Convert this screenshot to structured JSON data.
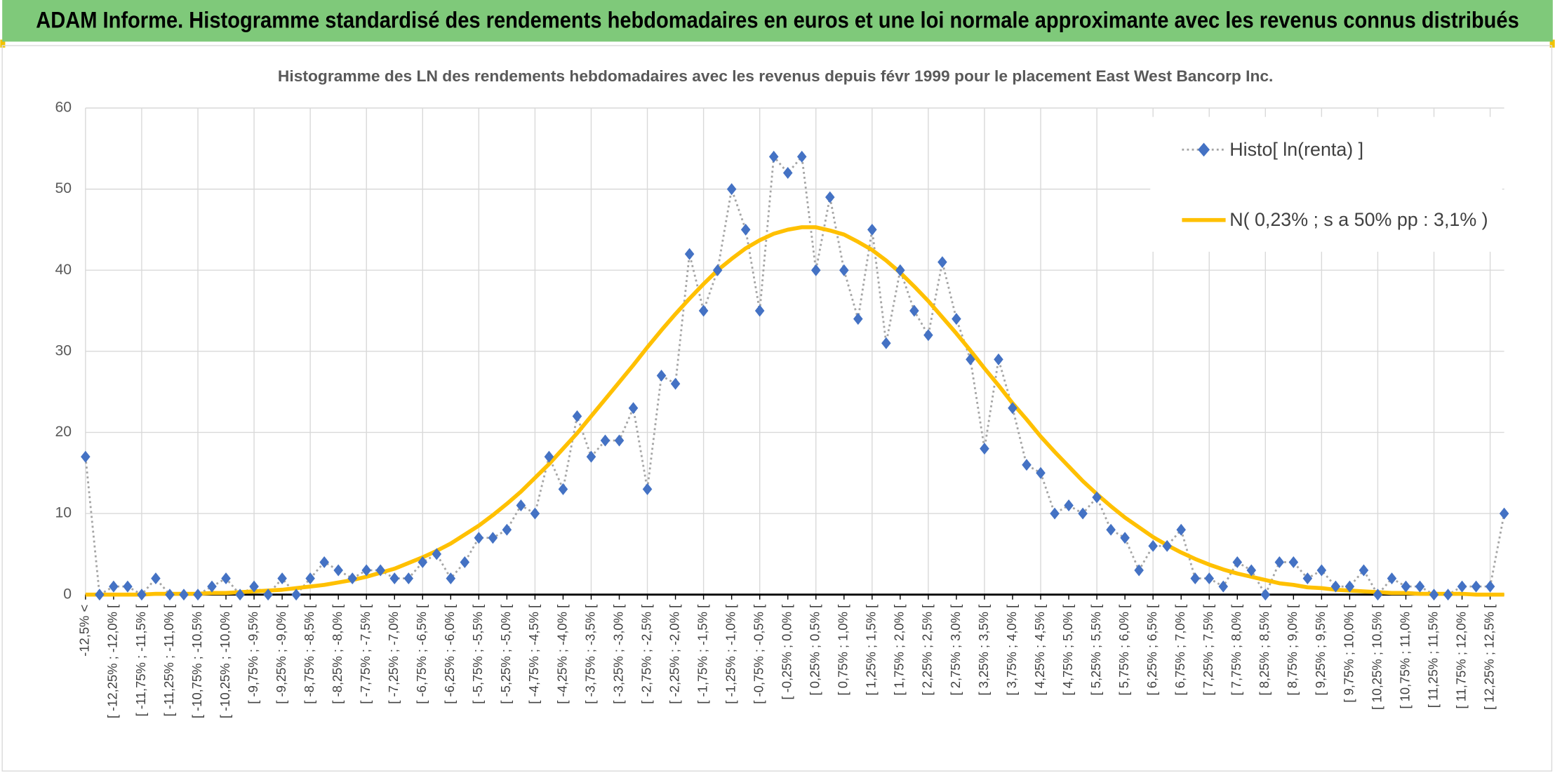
{
  "chart_data": {
    "type": "line",
    "title": "ADAM Informe. Histogramme standardisé des rendements hebdomadaires en euros et une loi normale approximante avec les revenus connus distribués",
    "subtitle": "Histogramme des LN des rendements hebdomadaires avec les revenus depuis févr 1999 pour le placement East West Bancorp Inc.",
    "categories": [
      "-12,5% <",
      null,
      "[ -12,25% ; -12,0% [",
      null,
      "[ -11,75% ; -11,5% [",
      null,
      "[ -11,25% ; -11,0% [",
      null,
      "[ -10,75% ; -10,5% [",
      null,
      "[ -10,25% ; -10,0% [",
      null,
      "[ -9,75% ; -9,5% [",
      null,
      "[ -9,25% ; -9,0% [",
      null,
      "[ -8,75% ; -8,5% [",
      null,
      "[ -8,25% ; -8,0% [",
      null,
      "[ -7,75% ; -7,5% [",
      null,
      "[ -7,25% ; -7,0% [",
      null,
      "[ -6,75% ; -6,5% [",
      null,
      "[ -6,25% ; -6,0% [",
      null,
      "[ -5,75% ; -5,5% [",
      null,
      "[ -5,25% ; -5,0% [",
      null,
      "[ -4,75% ; -4,5% [",
      null,
      "[ -4,25% ; -4,0% [",
      null,
      "[ -3,75% ; -3,5% [",
      null,
      "[ -3,25% ; -3,0% [",
      null,
      "[ -2,75% ; -2,5% [",
      null,
      "[ -2,25% ; -2,0% [",
      null,
      "[ -1,75% ; -1,5% [",
      null,
      "[ -1,25% ; -1,0% [",
      null,
      "[ -0,75% ; -0,5% [",
      null,
      "[ -0,25% ; 0,0% [",
      null,
      "[ 0,25% ; 0,5% [",
      null,
      "[ 0,75% ; 1,0% [",
      null,
      "[ 1,25% ; 1,5% [",
      null,
      "[ 1,75% ; 2,0% [",
      null,
      "[ 2,25% ; 2,5% [",
      null,
      "[ 2,75% ; 3,0% [",
      null,
      "[ 3,25% ; 3,5% [",
      null,
      "[ 3,75% ; 4,0% [",
      null,
      "[ 4,25% ; 4,5% [",
      null,
      "[ 4,75% ; 5,0% [",
      null,
      "[ 5,25% ; 5,5% [",
      null,
      "[ 5,75% ; 6,0% [",
      null,
      "[ 6,25% ; 6,5% [",
      null,
      "[ 6,75% ; 7,0% [",
      null,
      "[ 7,25% ; 7,5% [",
      null,
      "[ 7,75% ; 8,0% [",
      null,
      "[ 8,25% ; 8,5% [",
      null,
      "[ 8,75% ; 9,0% [",
      null,
      "[ 9,25% ; 9,5% [",
      null,
      "[ 9,75% ; 10,0% [",
      null,
      "[ 10,25% ; 10,5% [",
      null,
      "[ 10,75% ; 11,0% [",
      null,
      "[ 11,25% ; 11,5% [",
      null,
      "[ 11,75% ; 12,0% [",
      null,
      "[ 12,25% ; 12,5% [",
      null
    ],
    "series": [
      {
        "name": "Histo[ ln(renta) ]",
        "color": "#4472c4",
        "line_color": "#a5a5a5",
        "values": [
          17,
          0,
          1,
          1,
          0,
          2,
          0,
          0,
          0,
          1,
          2,
          0,
          1,
          0,
          2,
          0,
          2,
          4,
          3,
          2,
          3,
          3,
          2,
          2,
          4,
          5,
          2,
          4,
          7,
          7,
          8,
          11,
          10,
          17,
          13,
          22,
          17,
          19,
          19,
          23,
          13,
          27,
          26,
          42,
          35,
          40,
          50,
          45,
          35,
          54,
          52,
          54,
          40,
          49,
          40,
          34,
          45,
          31,
          40,
          35,
          32,
          41,
          34,
          29,
          18,
          29,
          23,
          16,
          15,
          10,
          11,
          10,
          12,
          8,
          7,
          3,
          6,
          6,
          8,
          2,
          2,
          1,
          4,
          3,
          0,
          4,
          4,
          2,
          3,
          1,
          1,
          3,
          0,
          2,
          1,
          1,
          0,
          0,
          1,
          1,
          1,
          10
        ]
      },
      {
        "name": "N( 0,23% ; s a 50% pp : 3,1% )",
        "color": "#ffc000",
        "values": [
          0,
          0,
          0,
          0,
          0,
          0.1,
          0.1,
          0.1,
          0.1,
          0.2,
          0.2,
          0.3,
          0.4,
          0.5,
          0.6,
          0.8,
          1.0,
          1.2,
          1.5,
          1.8,
          2.2,
          2.7,
          3.2,
          3.9,
          4.6,
          5.4,
          6.3,
          7.4,
          8.5,
          9.8,
          11.2,
          12.7,
          14.4,
          16.1,
          18.0,
          19.9,
          22.0,
          24.1,
          26.2,
          28.3,
          30.5,
          32.6,
          34.6,
          36.5,
          38.3,
          40.0,
          41.4,
          42.7,
          43.7,
          44.5,
          45.0,
          45.3,
          45.3,
          44.9,
          44.4,
          43.5,
          42.5,
          41.2,
          39.7,
          38.0,
          36.2,
          34.2,
          32.2,
          30.1,
          27.9,
          25.8,
          23.6,
          21.6,
          19.5,
          17.6,
          15.8,
          14.0,
          12.4,
          10.9,
          9.5,
          8.3,
          7.1,
          6.1,
          5.2,
          4.4,
          3.7,
          3.1,
          2.6,
          2.2,
          1.8,
          1.4,
          1.2,
          0.9,
          0.8,
          0.6,
          0.5,
          0.4,
          0.3,
          0.2,
          0.2,
          0.1,
          0.1,
          0.1,
          0.1,
          0,
          0,
          0
        ]
      }
    ],
    "ylim": [
      0,
      60
    ],
    "yticks": [
      0,
      10,
      20,
      30,
      40,
      50,
      60
    ],
    "grid": true,
    "legend": "top-right"
  }
}
